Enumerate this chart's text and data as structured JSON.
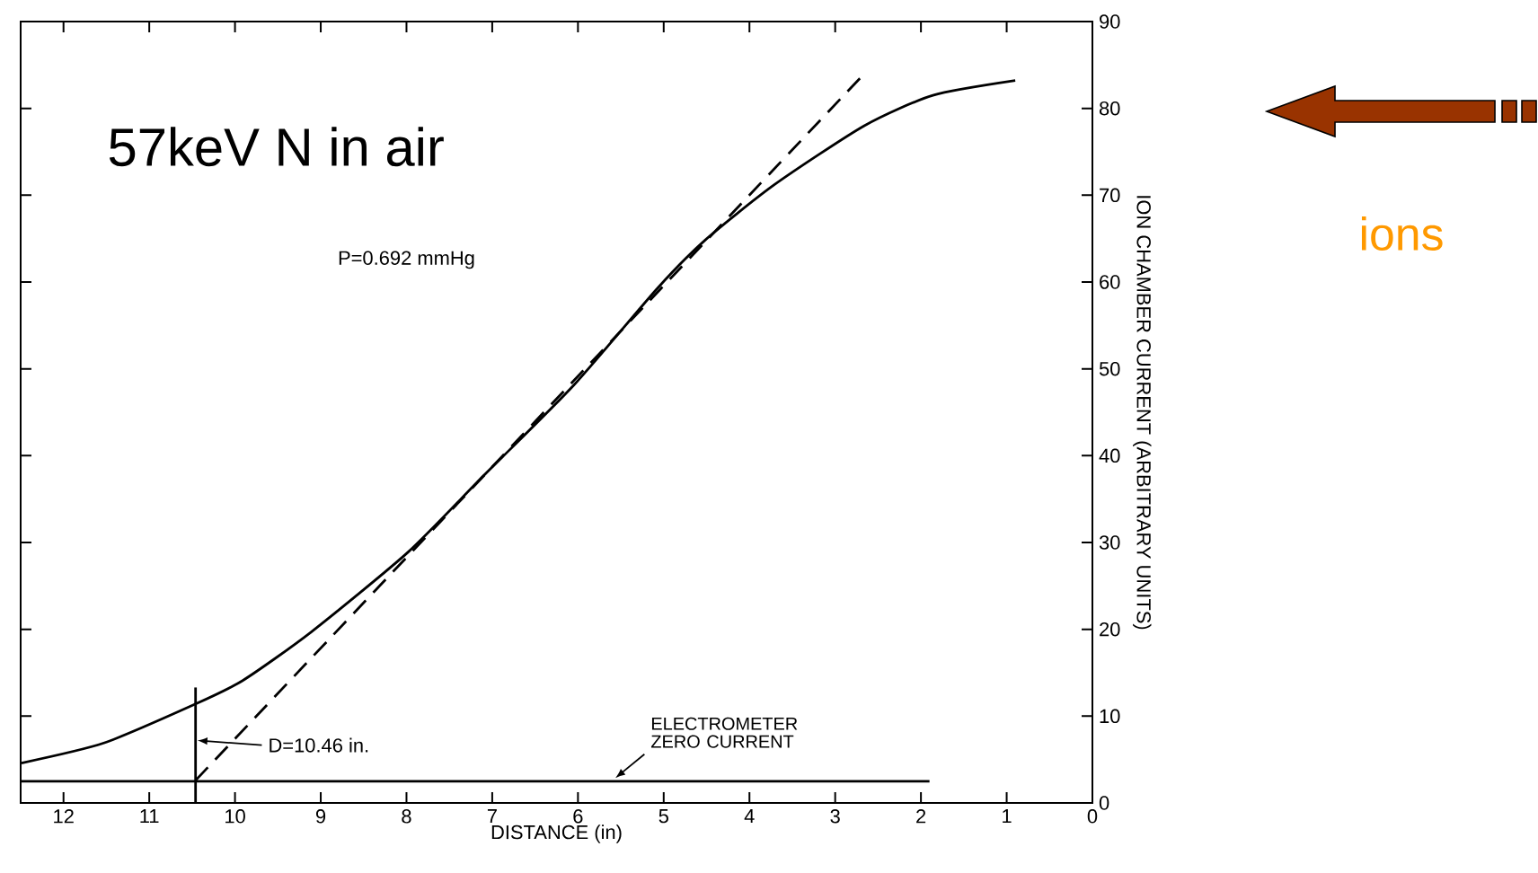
{
  "chart_data": {
    "type": "line",
    "xlabel": "DISTANCE (in)",
    "ylabel": "ION CHAMBER CURRENT (ARBITRARY UNITS)",
    "xlim": [
      12.5,
      0
    ],
    "ylim": [
      0,
      90
    ],
    "xticks": [
      0,
      1,
      2,
      3,
      4,
      5,
      6,
      7,
      8,
      9,
      10,
      11,
      12
    ],
    "yticks": [
      0,
      10,
      20,
      30,
      40,
      50,
      60,
      70,
      80,
      90
    ],
    "grid": false,
    "series": [
      {
        "color": "#000000",
        "line_style": "solid",
        "x": [
          12.49,
          11.53,
          10.46,
          9.91,
          9.11,
          7.98,
          7.1,
          6.05,
          5.08,
          4.52,
          3.71,
          2.66,
          1.86,
          0.9
        ],
        "values": [
          4.6,
          6.9,
          11.4,
          14.1,
          19.7,
          28.9,
          37.7,
          48.1,
          59.2,
          64.8,
          71.2,
          78.0,
          81.5,
          83.2
        ]
      },
      {
        "color": "#000000",
        "line_style": "dashed",
        "x": [
          10.46,
          2.66
        ],
        "values": [
          2.6,
          84
        ]
      },
      {
        "color": "#000000",
        "line_style": "solid",
        "x": [
          12.5,
          1.9
        ],
        "values": [
          2.5,
          2.5
        ]
      },
      {
        "color": "#000000",
        "line_style": "solid",
        "x": [
          10.46,
          10.46
        ],
        "values": [
          0,
          13.3
        ]
      }
    ],
    "annotations": [
      "57keV N in air",
      "P=0.692 mmHg",
      "D=10.46 in.",
      "ELECTROMETER ZERO CURRENT",
      "ions"
    ]
  }
}
